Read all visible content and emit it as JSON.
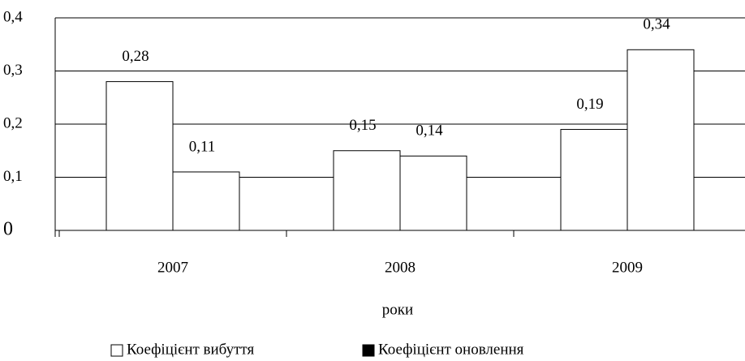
{
  "chart_data": {
    "type": "bar",
    "x_label": "роки",
    "categories": [
      "2007",
      "2008",
      "2009"
    ],
    "series": [
      {
        "name": "Коефіцієнт вибуття",
        "color": "#ffffff",
        "values": [
          0.28,
          0.15,
          0.19
        ],
        "value_labels": [
          "0,28",
          "0,15",
          "0,19"
        ]
      },
      {
        "name": "Коефіцієнт оновлення",
        "color": "#000000",
        "values": [
          0.11,
          0.14,
          0.34
        ],
        "value_labels": [
          "0,11",
          "0,14",
          "0,34"
        ]
      }
    ],
    "bar_fill": "#ffffff",
    "ylim": [
      0,
      0.4
    ],
    "yticks": [
      0,
      {
        "value": 0.1,
        "label": "0,1"
      },
      {
        "value": 0.2,
        "label": "0,2"
      },
      {
        "value": 0.3,
        "label": "0,3"
      },
      {
        "value": 0.4,
        "label": "0,4"
      }
    ],
    "grid": true,
    "legend": "bottom"
  }
}
